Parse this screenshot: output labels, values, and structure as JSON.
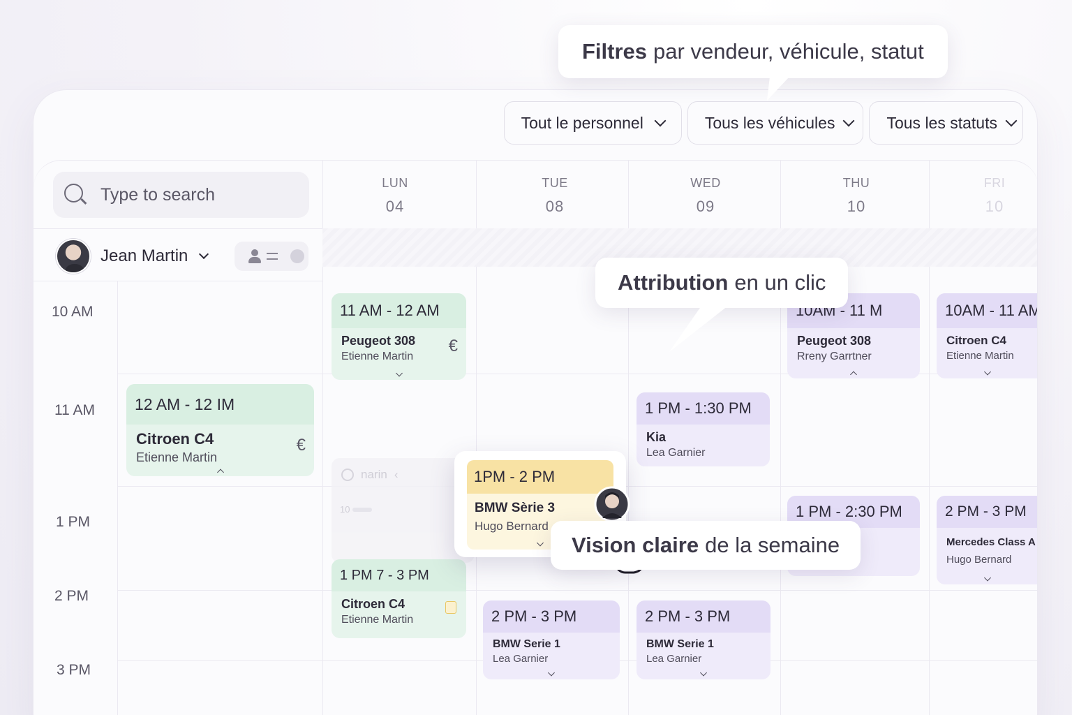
{
  "callouts": {
    "filters_bold": "Filtres",
    "filters_rest": "par vendeur, véhicule, statut",
    "assign_bold": "Attribution",
    "assign_rest": "en un clic",
    "vision_bold": "Vision claire",
    "vision_rest": "de la semaine"
  },
  "filters": [
    {
      "label": "Tout le personnel"
    },
    {
      "label": "Tous les véhicules"
    },
    {
      "label": "Tous les statuts"
    }
  ],
  "search": {
    "placeholder": "Type to search"
  },
  "user": {
    "name": "Jean Martin"
  },
  "days": [
    {
      "name": "LUN",
      "date": "04"
    },
    {
      "name": "TUE",
      "date": "08"
    },
    {
      "name": "WED",
      "date": "09"
    },
    {
      "name": "THU",
      "date": "10"
    },
    {
      "name": "FRI",
      "date": "10"
    }
  ],
  "times": [
    "10 AM",
    "11 AM",
    "1 PM",
    "2 PM",
    "3 PM"
  ],
  "events": {
    "e1": {
      "time": "11 AM - 12 AM",
      "vehicle": "Peugeot 308",
      "person": "Etienne Martin",
      "icon": "€"
    },
    "e2": {
      "time": "12 AM - 12 IM",
      "vehicle": "Citroen C4",
      "person": "Etienne Martin",
      "icon": "€"
    },
    "e3": {
      "time": "1 PM 7 - 3 PM",
      "vehicle": "Citroen C4",
      "person": "Etienne Martin"
    },
    "e4": {
      "time": "2 PM - 3 PM",
      "vehicle": "BMW Serie 1",
      "person": "Lea Garnier"
    },
    "e5": {
      "time": "2 PM - 3 PM",
      "vehicle": "BMW Serie 1",
      "person": "Lea Garnier"
    },
    "e6": {
      "time": "1 PM - 1:30 PM",
      "vehicle": "Kia",
      "person": "Lea Garnier"
    },
    "e7": {
      "time": "10AM - 11 M",
      "vehicle": "Peugeot 308",
      "person": "Rreny Garrtner"
    },
    "e8": {
      "time": "1 PM - 2:30 PM",
      "vehicle": "",
      "person": ""
    },
    "e9": {
      "time": "10AM - 11 AM",
      "vehicle": "Citroen C4",
      "person": "Etienne Martin"
    },
    "e10": {
      "time": "2 PM - 3 PM",
      "vehicle": "Mercedes Class A",
      "person": "Hugo Bernard"
    }
  },
  "dragging": {
    "time": "1PM - 2 PM",
    "vehicle": "BMW Sèrie 3",
    "person": "Hugo Bernard"
  },
  "ghost": {
    "text": "narin",
    "count": "10"
  },
  "colors": {
    "green": "#e6f4ec",
    "purple": "#efebfa",
    "yellow": "#f8e2a4",
    "text": "#2d2a38"
  }
}
